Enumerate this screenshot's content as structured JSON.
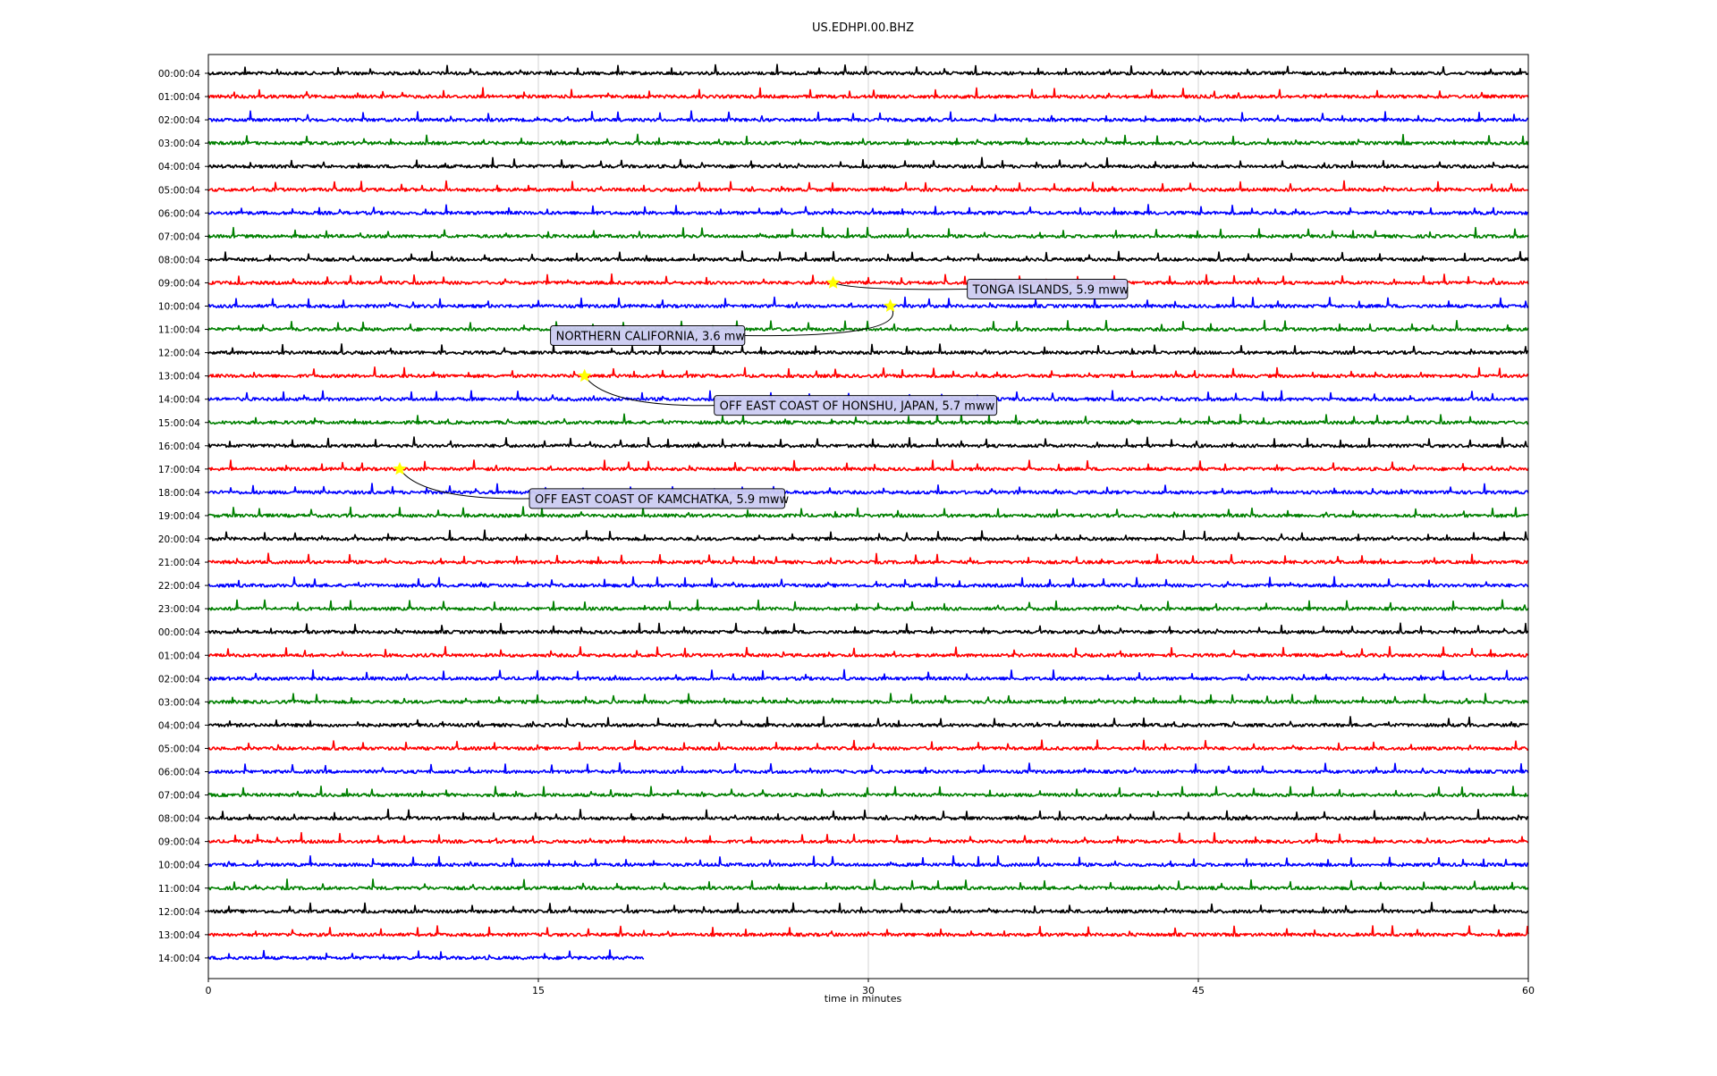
{
  "chart_data": {
    "type": "line",
    "title": "US.EDHPI.00.BHZ",
    "xlabel": "time in minutes",
    "ylabel": "",
    "xlim": [
      0,
      60
    ],
    "xticks": [
      {
        "value": 0,
        "label": "0"
      },
      {
        "value": 15,
        "label": "15"
      },
      {
        "value": 30,
        "label": "30"
      },
      {
        "value": 45,
        "label": "45"
      },
      {
        "value": 60,
        "label": "60"
      }
    ],
    "vertical_grid": true,
    "trace_colors": [
      "#000000",
      "#ff0000",
      "#0000ff",
      "#008000"
    ],
    "row_labels": [
      "00:00:04",
      "01:00:04",
      "02:00:04",
      "03:00:04",
      "04:00:04",
      "05:00:04",
      "06:00:04",
      "07:00:04",
      "08:00:04",
      "09:00:04",
      "10:00:04",
      "11:00:04",
      "12:00:04",
      "13:00:04",
      "14:00:04",
      "15:00:04",
      "16:00:04",
      "17:00:04",
      "18:00:04",
      "19:00:04",
      "20:00:04",
      "21:00:04",
      "22:00:04",
      "23:00:04",
      "00:00:04",
      "01:00:04",
      "02:00:04",
      "03:00:04",
      "04:00:04",
      "05:00:04",
      "06:00:04",
      "07:00:04",
      "08:00:04",
      "09:00:04",
      "10:00:04",
      "11:00:04",
      "12:00:04",
      "13:00:04",
      "14:00:04"
    ],
    "last_row_end_minute": 19.8,
    "events": [
      {
        "label": "TONGA ISLANDS, 5.9 mww",
        "row": 9,
        "minute": 28.4
      },
      {
        "label": "NORTHERN CALIFORNIA, 3.6 mw",
        "row": 10,
        "minute": 31.0
      },
      {
        "label": "OFF EAST COAST OF HONSHU, JAPAN, 5.7 mww",
        "row": 13,
        "minute": 17.1
      },
      {
        "label": "OFF EAST COAST OF KAMCHATKA, 5.9 mww",
        "row": 17,
        "minute": 8.7
      }
    ],
    "event_marker_color": "#ffff00",
    "annotation_box_fill": "#ccccf2"
  }
}
